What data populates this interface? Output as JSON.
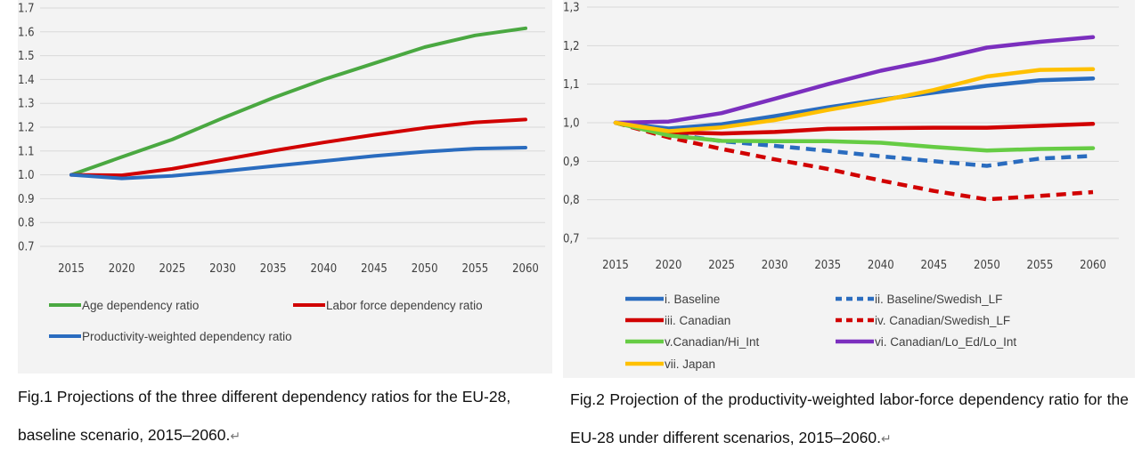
{
  "chart_data": [
    {
      "type": "line",
      "title": "",
      "xlabel": "",
      "ylabel": "",
      "x": [
        "2015",
        "2020",
        "2025",
        "2030",
        "2035",
        "2040",
        "2045",
        "2050",
        "2055",
        "2060"
      ],
      "ylim": [
        0.7,
        1.7
      ],
      "yticks": [
        "1.7",
        "1.6",
        "1.5",
        "1.4",
        "1.3",
        "1.2",
        "1.1",
        "1.0",
        "0.9",
        "0.8",
        "0.7"
      ],
      "grid": true,
      "legend_position": "bottom",
      "series": [
        {
          "name": "Age dependency ratio",
          "color": "#4aa841",
          "dash": "solid",
          "values": [
            1.0,
            1.075,
            1.148,
            1.238,
            1.323,
            1.4,
            1.468,
            1.536,
            1.585,
            1.615
          ]
        },
        {
          "name": "Labor force dependency ratio",
          "color": "#d10000",
          "dash": "solid",
          "values": [
            1.0,
            0.998,
            1.025,
            1.063,
            1.101,
            1.136,
            1.168,
            1.197,
            1.22,
            1.232
          ]
        },
        {
          "name": "Productivity-weighted dependency ratio",
          "color": "#2a6cbf",
          "dash": "solid",
          "values": [
            1.0,
            0.985,
            0.996,
            1.015,
            1.037,
            1.058,
            1.079,
            1.097,
            1.11,
            1.114
          ]
        }
      ],
      "caption": "Fig.1 Projections of the three different dependency ratios for the EU-28, baseline scenario, 2015–2060."
    },
    {
      "type": "line",
      "title": "",
      "xlabel": "",
      "ylabel": "",
      "x": [
        "2015",
        "2020",
        "2025",
        "2030",
        "2035",
        "2040",
        "2045",
        "2050",
        "2055",
        "2060"
      ],
      "ylim": [
        0.7,
        1.3
      ],
      "yticks": [
        "1,3",
        "1,2",
        "1,1",
        "1,0",
        "0,9",
        "0,8",
        "0,7"
      ],
      "grid": true,
      "legend_position": "bottom",
      "series": [
        {
          "name": "i. Baseline",
          "color": "#2a6cbf",
          "dash": "solid",
          "values": [
            1.0,
            0.985,
            0.996,
            1.017,
            1.04,
            1.06,
            1.078,
            1.096,
            1.11,
            1.115
          ]
        },
        {
          "name": "ii. Baseline/Swedish_LF",
          "color": "#2a6cbf",
          "dash": "dashed",
          "values": [
            1.0,
            0.972,
            0.952,
            0.94,
            0.927,
            0.913,
            0.9,
            0.888,
            0.907,
            0.914
          ]
        },
        {
          "name": "iii. Canadian",
          "color": "#d10000",
          "dash": "solid",
          "values": [
            1.0,
            0.975,
            0.972,
            0.976,
            0.984,
            0.986,
            0.987,
            0.987,
            0.992,
            0.997
          ]
        },
        {
          "name": "iv. Canadian/Swedish_LF",
          "color": "#d10000",
          "dash": "dashed",
          "values": [
            1.0,
            0.962,
            0.932,
            0.905,
            0.88,
            0.85,
            0.823,
            0.801,
            0.81,
            0.82
          ]
        },
        {
          "name": "v.Canadian/Hi_Int",
          "color": "#66cc44",
          "dash": "solid",
          "values": [
            1.0,
            0.967,
            0.953,
            0.952,
            0.952,
            0.948,
            0.937,
            0.928,
            0.932,
            0.934
          ]
        },
        {
          "name": "vi. Canadian/Lo_Ed/Lo_Int",
          "color": "#7b2fbe",
          "dash": "solid",
          "values": [
            1.0,
            1.003,
            1.025,
            1.062,
            1.1,
            1.135,
            1.163,
            1.195,
            1.21,
            1.222
          ]
        },
        {
          "name": "vii. Japan",
          "color": "#ffc000",
          "dash": "solid",
          "values": [
            1.0,
            0.978,
            0.988,
            1.007,
            1.033,
            1.057,
            1.085,
            1.12,
            1.137,
            1.139
          ]
        }
      ],
      "caption": "Fig.2 Projection of the productivity-weighted labor-force dependency ratio for the EU-28 under different scenarios, 2015–2060."
    }
  ],
  "caption_mark": "↵"
}
